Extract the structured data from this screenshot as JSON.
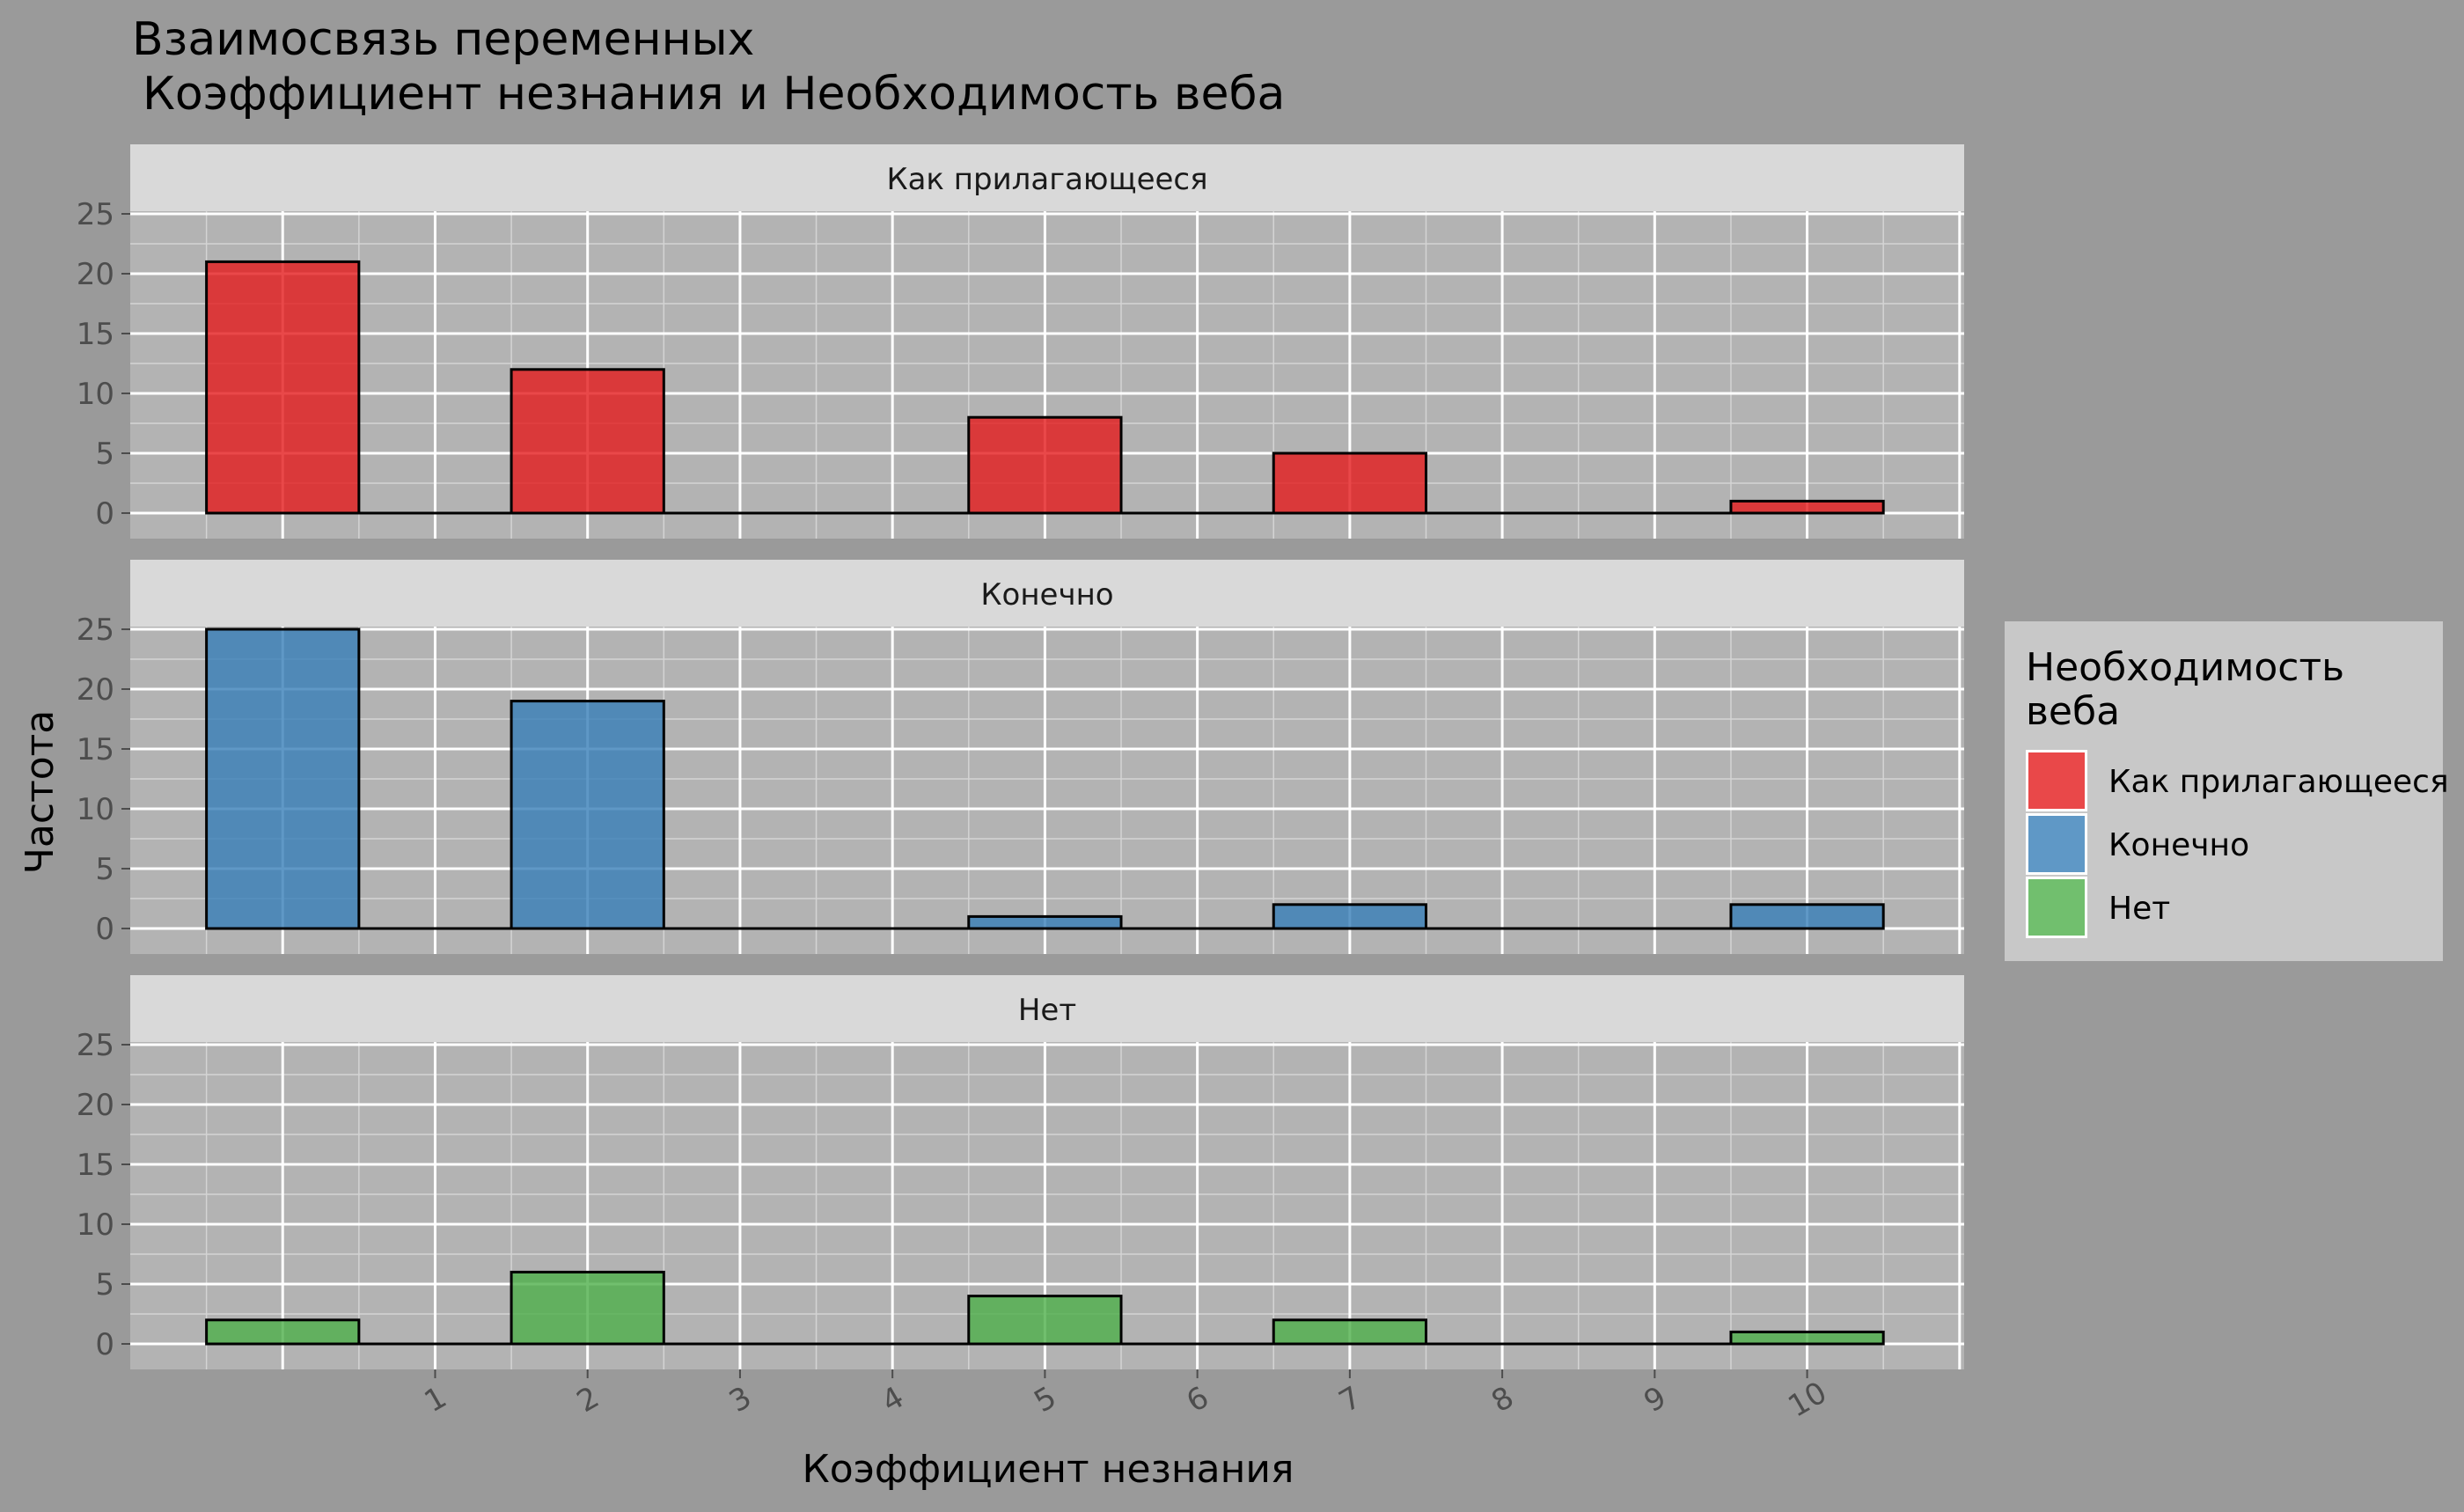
{
  "title_line1": "Взаимосвязь переменных",
  "title_line2": "Коэффициент незнания и Необходимость веба",
  "chart_data": {
    "type": "bar",
    "xlabel": "Коэффициент незнания",
    "ylabel": "Частота",
    "x_ticks": [
      "1",
      "2",
      "3",
      "4",
      "5",
      "6",
      "7",
      "8",
      "9",
      "10"
    ],
    "ylim": [
      0,
      27
    ],
    "y_ticks": [
      "0",
      "5",
      "10",
      "15",
      "20",
      "25"
    ],
    "grid": true,
    "legend_position": "right",
    "legend_title_line1": "Необходимость",
    "legend_title_line2": "веба",
    "bar_centers": [
      0,
      2,
      5,
      7,
      10
    ],
    "bar_width": 1,
    "series": [
      {
        "name": "Как прилагающееся",
        "color": "#e41a1c",
        "values": [
          21,
          12,
          8,
          5,
          1
        ]
      },
      {
        "name": "Конечно",
        "color": "#377eb8",
        "values": [
          25,
          19,
          1,
          2,
          2
        ]
      },
      {
        "name": "Нет",
        "color": "#4daf4a",
        "values": [
          2,
          6,
          4,
          2,
          1
        ]
      }
    ]
  }
}
